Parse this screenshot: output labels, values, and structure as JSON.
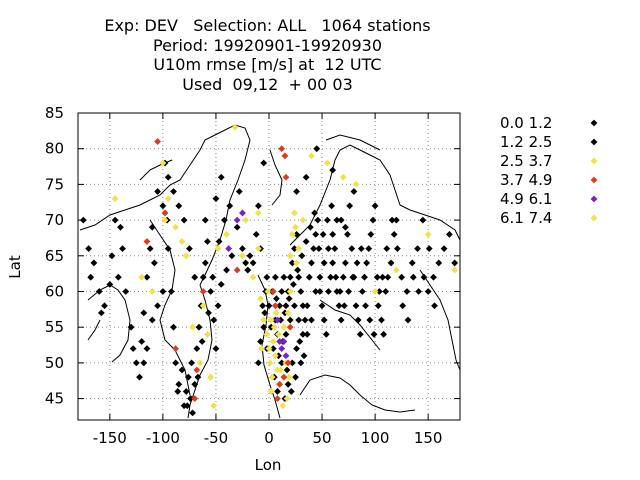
{
  "title": {
    "line1": "Exp: DEV   Selection: ALL   1064 stations",
    "line2": "Period: 19920901-19920930",
    "line3": "U10m rmse [m/s] at  12 UTC",
    "line4": "Used  09,12  + 00 03"
  },
  "chart_data": {
    "type": "scatter",
    "xlabel": "Lon",
    "ylabel": "Lat",
    "xlim": [
      -180,
      180
    ],
    "ylim": [
      42,
      85
    ],
    "xticks": [
      -150,
      -100,
      -50,
      0,
      50,
      100,
      150
    ],
    "yticks": [
      45,
      50,
      55,
      60,
      65,
      70,
      75,
      80,
      85
    ],
    "grid": true,
    "legend_position": "right",
    "series": [
      {
        "name": "0.0 1.2",
        "color": "#000000",
        "points": [
          [
            -170,
            66
          ],
          [
            -165,
            64
          ],
          [
            -160,
            60
          ],
          [
            -155,
            58
          ],
          [
            -150,
            61
          ],
          [
            -148,
            65
          ],
          [
            -145,
            70
          ],
          [
            -140,
            69
          ],
          [
            -135,
            60
          ],
          [
            -130,
            55
          ],
          [
            -125,
            50
          ],
          [
            -122,
            48
          ],
          [
            -120,
            53
          ],
          [
            -118,
            57
          ],
          [
            -115,
            62
          ],
          [
            -112,
            66
          ],
          [
            -110,
            69
          ],
          [
            -105,
            74
          ],
          [
            -100,
            72
          ],
          [
            -98,
            78
          ],
          [
            -95,
            66
          ],
          [
            -92,
            60
          ],
          [
            -90,
            55
          ],
          [
            -88,
            50
          ],
          [
            -85,
            47
          ],
          [
            -82,
            49
          ],
          [
            -80,
            44
          ],
          [
            -78,
            46
          ],
          [
            -76,
            48
          ],
          [
            -74,
            45
          ],
          [
            -72,
            43
          ],
          [
            -70,
            47
          ],
          [
            -68,
            52
          ],
          [
            -66,
            55
          ],
          [
            -64,
            58
          ],
          [
            -62,
            62
          ],
          [
            -60,
            64
          ],
          [
            -58,
            67
          ],
          [
            -55,
            60
          ],
          [
            -52,
            56
          ],
          [
            -50,
            52
          ],
          [
            -48,
            58
          ],
          [
            -45,
            61
          ],
          [
            -40,
            63
          ],
          [
            -35,
            65
          ],
          [
            -30,
            69
          ],
          [
            -25,
            66
          ],
          [
            -22,
            64
          ],
          [
            -20,
            63
          ],
          [
            -18,
            65
          ],
          [
            -15,
            64
          ],
          [
            -10,
            72
          ],
          [
            -5,
            78
          ],
          [
            -3,
            60
          ],
          [
            0,
            58
          ],
          [
            2,
            55
          ],
          [
            4,
            52
          ],
          [
            6,
            56
          ],
          [
            8,
            54
          ],
          [
            10,
            58
          ],
          [
            12,
            60
          ],
          [
            14,
            62
          ],
          [
            16,
            58
          ],
          [
            18,
            60
          ],
          [
            20,
            62
          ],
          [
            22,
            64
          ],
          [
            24,
            66
          ],
          [
            26,
            68
          ],
          [
            28,
            62
          ],
          [
            30,
            60
          ],
          [
            32,
            58
          ],
          [
            34,
            56
          ],
          [
            36,
            54
          ],
          [
            38,
            62
          ],
          [
            40,
            64
          ],
          [
            42,
            66
          ],
          [
            44,
            68
          ],
          [
            46,
            70
          ],
          [
            48,
            60
          ],
          [
            50,
            58
          ],
          [
            52,
            56
          ],
          [
            54,
            54
          ],
          [
            56,
            60
          ],
          [
            58,
            62
          ],
          [
            60,
            64
          ],
          [
            62,
            66
          ],
          [
            64,
            60
          ],
          [
            66,
            58
          ],
          [
            68,
            56
          ],
          [
            70,
            62
          ],
          [
            72,
            64
          ],
          [
            74,
            68
          ],
          [
            76,
            72
          ],
          [
            78,
            66
          ],
          [
            80,
            62
          ],
          [
            82,
            58
          ],
          [
            84,
            56
          ],
          [
            86,
            54
          ],
          [
            88,
            60
          ],
          [
            90,
            62
          ],
          [
            92,
            64
          ],
          [
            94,
            66
          ],
          [
            96,
            68
          ],
          [
            98,
            70
          ],
          [
            100,
            72
          ],
          [
            102,
            62
          ],
          [
            104,
            60
          ],
          [
            106,
            56
          ],
          [
            108,
            54
          ],
          [
            110,
            60
          ],
          [
            112,
            62
          ],
          [
            115,
            64
          ],
          [
            118,
            68
          ],
          [
            120,
            70
          ],
          [
            125,
            62
          ],
          [
            130,
            60
          ],
          [
            135,
            64
          ],
          [
            140,
            66
          ],
          [
            145,
            70
          ],
          [
            150,
            60
          ],
          [
            155,
            62
          ],
          [
            160,
            64
          ],
          [
            165,
            66
          ],
          [
            170,
            68
          ],
          [
            175,
            64
          ],
          [
            26,
            74
          ],
          [
            35,
            76
          ],
          [
            45,
            80
          ],
          [
            60,
            77
          ],
          [
            80,
            74
          ],
          [
            -60,
            70
          ],
          [
            -50,
            73
          ],
          [
            -45,
            76
          ],
          [
            -70,
            62
          ],
          [
            -75,
            66
          ],
          [
            -80,
            70
          ],
          [
            -85,
            72
          ],
          [
            -90,
            74
          ],
          [
            -95,
            76
          ],
          [
            -100,
            60
          ],
          [
            -105,
            58
          ],
          [
            -110,
            56
          ],
          [
            -115,
            52
          ],
          [
            -10,
            50
          ],
          [
            -8,
            53
          ],
          [
            -5,
            55
          ],
          [
            15,
            45
          ],
          [
            18,
            47
          ],
          [
            22,
            50
          ],
          [
            26,
            52
          ],
          [
            30,
            50
          ],
          [
            5,
            48
          ],
          [
            8,
            46
          ],
          [
            -2,
            52
          ],
          [
            12,
            50
          ],
          [
            16,
            54
          ],
          [
            20,
            56
          ],
          [
            24,
            58
          ],
          [
            28,
            56
          ],
          [
            32,
            54
          ],
          [
            36,
            58
          ],
          [
            40,
            56
          ],
          [
            44,
            60
          ],
          [
            48,
            62
          ],
          [
            52,
            64
          ],
          [
            56,
            66
          ],
          [
            60,
            68
          ],
          [
            64,
            70
          ],
          [
            68,
            70
          ],
          [
            72,
            69
          ]
        ]
      },
      {
        "name": "1.2 2.5",
        "color": "#000000",
        "points": [
          [
            -175,
            70
          ],
          [
            -168,
            62
          ],
          [
            -158,
            57
          ],
          [
            -142,
            62
          ],
          [
            -138,
            66
          ],
          [
            -128,
            52
          ],
          [
            -118,
            50
          ],
          [
            -108,
            64
          ],
          [
            -96,
            70
          ],
          [
            -86,
            46
          ],
          [
            -77,
            44
          ],
          [
            -73,
            50
          ],
          [
            -67,
            48
          ],
          [
            -63,
            53
          ],
          [
            -57,
            57
          ],
          [
            -53,
            62
          ],
          [
            -47,
            67
          ],
          [
            -42,
            70
          ],
          [
            -37,
            72
          ],
          [
            -28,
            74
          ],
          [
            -12,
            68
          ],
          [
            -8,
            66
          ],
          [
            -2,
            62
          ],
          [
            3,
            60
          ],
          [
            7,
            59
          ],
          [
            11,
            56
          ],
          [
            15,
            57
          ],
          [
            19,
            59
          ],
          [
            23,
            61
          ],
          [
            27,
            63
          ],
          [
            31,
            65
          ],
          [
            35,
            67
          ],
          [
            39,
            69
          ],
          [
            43,
            71
          ],
          [
            47,
            66
          ],
          [
            51,
            68
          ],
          [
            55,
            70
          ],
          [
            59,
            72
          ],
          [
            63,
            62
          ],
          [
            67,
            60
          ],
          [
            71,
            58
          ],
          [
            75,
            60
          ],
          [
            79,
            62
          ],
          [
            83,
            64
          ],
          [
            87,
            66
          ],
          [
            91,
            58
          ],
          [
            95,
            56
          ],
          [
            99,
            54
          ],
          [
            103,
            58
          ],
          [
            107,
            62
          ],
          [
            111,
            66
          ],
          [
            116,
            70
          ],
          [
            121,
            66
          ],
          [
            126,
            58
          ],
          [
            131,
            56
          ],
          [
            136,
            62
          ],
          [
            141,
            60
          ],
          [
            146,
            62
          ],
          [
            151,
            66
          ],
          [
            156,
            58
          ],
          [
            9,
            51
          ],
          [
            13,
            53
          ],
          [
            17,
            49
          ],
          [
            21,
            46
          ],
          [
            25,
            48
          ],
          [
            29,
            53
          ],
          [
            33,
            51
          ],
          [
            -6,
            58
          ],
          [
            -4,
            57
          ],
          [
            6,
            62
          ]
        ]
      },
      {
        "name": "2.5 3.7",
        "color": "#f2e24a",
        "points": [
          [
            -120,
            62
          ],
          [
            -110,
            60
          ],
          [
            -100,
            78
          ],
          [
            -98,
            70
          ],
          [
            -95,
            73
          ],
          [
            -88,
            69
          ],
          [
            -82,
            67
          ],
          [
            -78,
            65
          ],
          [
            -72,
            55
          ],
          [
            -65,
            50
          ],
          [
            -62,
            58
          ],
          [
            -58,
            54
          ],
          [
            -55,
            48
          ],
          [
            -52,
            44
          ],
          [
            -48,
            66
          ],
          [
            -40,
            68
          ],
          [
            -32,
            83
          ],
          [
            -25,
            65
          ],
          [
            -22,
            70
          ],
          [
            -15,
            62
          ],
          [
            -10,
            66
          ],
          [
            -8,
            59
          ],
          [
            -5,
            56
          ],
          [
            -2,
            54
          ],
          [
            0,
            52
          ],
          [
            1,
            50
          ],
          [
            3,
            48
          ],
          [
            4,
            53
          ],
          [
            6,
            51
          ],
          [
            8,
            49
          ],
          [
            10,
            47
          ],
          [
            12,
            52
          ],
          [
            14,
            55
          ],
          [
            16,
            50
          ],
          [
            18,
            57
          ],
          [
            20,
            65
          ],
          [
            22,
            68
          ],
          [
            24,
            71
          ],
          [
            25,
            69
          ],
          [
            28,
            66
          ],
          [
            32,
            70
          ],
          [
            40,
            79
          ],
          [
            55,
            78
          ],
          [
            70,
            76
          ],
          [
            82,
            75
          ],
          [
            100,
            60
          ],
          [
            120,
            63
          ],
          [
            150,
            68
          ],
          [
            175,
            63
          ],
          [
            -145,
            73
          ],
          [
            5,
            55
          ],
          [
            7,
            57
          ],
          [
            9,
            54
          ],
          [
            11,
            49
          ],
          [
            2,
            46
          ],
          [
            -1,
            60
          ],
          [
            26,
            64
          ],
          [
            17,
            45
          ],
          [
            19,
            48
          ],
          [
            13,
            44
          ]
        ]
      },
      {
        "name": "3.7 4.9",
        "color": "#e03a1e",
        "points": [
          [
            -105,
            81
          ],
          [
            -98,
            71
          ],
          [
            -88,
            52
          ],
          [
            -70,
            45
          ],
          [
            -68,
            49
          ],
          [
            -62,
            60
          ],
          [
            12,
            80
          ],
          [
            15,
            79
          ],
          [
            16,
            76
          ],
          [
            8,
            45
          ],
          [
            10,
            47
          ],
          [
            14,
            48
          ],
          [
            18,
            50
          ],
          [
            20,
            55
          ],
          [
            6,
            58
          ],
          [
            -115,
            67
          ],
          [
            -30,
            63
          ],
          [
            4,
            60
          ]
        ]
      },
      {
        "name": "4.9 6.1",
        "color": "#7b1fc7",
        "points": [
          [
            -38,
            66
          ],
          [
            -30,
            70
          ],
          [
            -25,
            71
          ],
          [
            12,
            52
          ],
          [
            14,
            53
          ],
          [
            16,
            51
          ],
          [
            8,
            56
          ],
          [
            10,
            53
          ]
        ]
      },
      {
        "name": "6.1 7.4",
        "color": "#f2e24a",
        "points": [
          [
            -10,
            71
          ],
          [
            -7,
            52
          ],
          [
            2,
            56
          ],
          [
            20,
            60
          ]
        ]
      }
    ]
  }
}
